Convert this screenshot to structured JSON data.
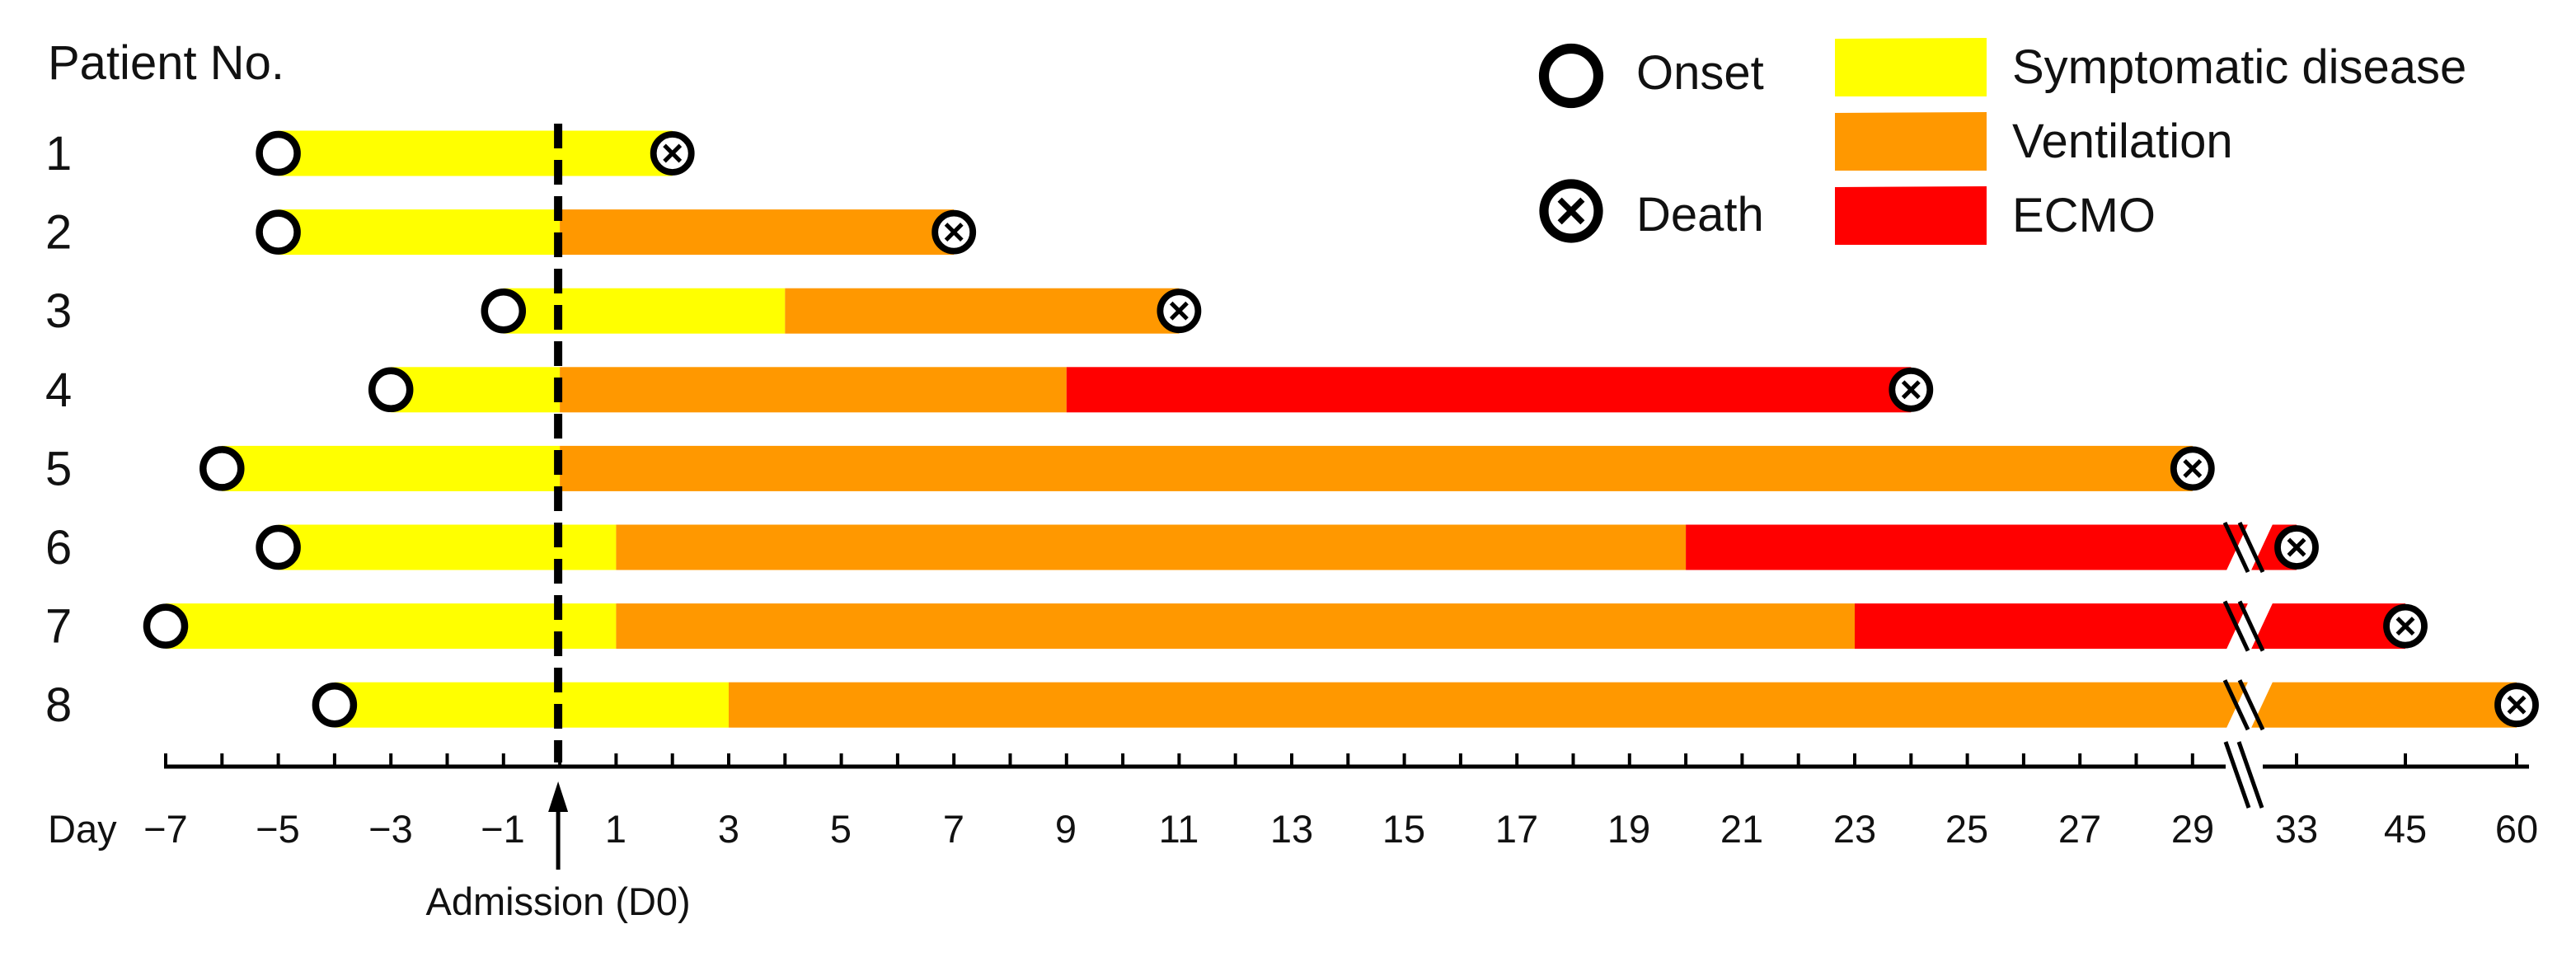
{
  "chart_data": {
    "type": "timeline",
    "title": "",
    "row_label": "Patient No.",
    "xlabel": "Day",
    "x_ticks": [
      "−7",
      "−5",
      "−3",
      "−1",
      "1",
      "3",
      "5",
      "7",
      "9",
      "11",
      "13",
      "15",
      "17",
      "19",
      "21",
      "23",
      "25",
      "27",
      "29",
      "33",
      "45",
      "60"
    ],
    "axis_break_after": "29",
    "admission_label": "Admission (D0)",
    "admission_day": 0,
    "legend": {
      "markers": [
        {
          "key": "onset",
          "label": "Onset"
        },
        {
          "key": "death",
          "label": "Death"
        }
      ],
      "phases": [
        {
          "key": "symptomatic",
          "label": "Symptomatic disease",
          "color": "#ffff00"
        },
        {
          "key": "ventilation",
          "label": "Ventilation",
          "color": "#ff9800"
        },
        {
          "key": "ecmo",
          "label": "ECMO",
          "color": "#ff0000"
        }
      ]
    },
    "patients": [
      {
        "id": "1",
        "onset": -5,
        "death": 2,
        "segments": [
          {
            "phase": "symptomatic",
            "start": -5,
            "end": 2
          }
        ]
      },
      {
        "id": "2",
        "onset": -5,
        "death": 7,
        "segments": [
          {
            "phase": "symptomatic",
            "start": -5,
            "end": 0
          },
          {
            "phase": "ventilation",
            "start": 0,
            "end": 7
          }
        ]
      },
      {
        "id": "3",
        "onset": -1,
        "death": 11,
        "segments": [
          {
            "phase": "symptomatic",
            "start": -1,
            "end": 4
          },
          {
            "phase": "ventilation",
            "start": 4,
            "end": 11
          }
        ]
      },
      {
        "id": "4",
        "onset": -3,
        "death": 24,
        "segments": [
          {
            "phase": "symptomatic",
            "start": -3,
            "end": 0
          },
          {
            "phase": "ventilation",
            "start": 0,
            "end": 9
          },
          {
            "phase": "ecmo",
            "start": 9,
            "end": 24
          }
        ]
      },
      {
        "id": "5",
        "onset": -6,
        "death": 29,
        "segments": [
          {
            "phase": "symptomatic",
            "start": -6,
            "end": 0
          },
          {
            "phase": "ventilation",
            "start": 0,
            "end": 29
          }
        ]
      },
      {
        "id": "6",
        "onset": -5,
        "death": 33,
        "segments": [
          {
            "phase": "symptomatic",
            "start": -5,
            "end": 1
          },
          {
            "phase": "ventilation",
            "start": 1,
            "end": 20
          },
          {
            "phase": "ecmo",
            "start": 20,
            "end": 33
          }
        ]
      },
      {
        "id": "7",
        "onset": -7,
        "death": 45,
        "segments": [
          {
            "phase": "symptomatic",
            "start": -7,
            "end": 1
          },
          {
            "phase": "ventilation",
            "start": 1,
            "end": 23
          },
          {
            "phase": "ecmo",
            "start": 23,
            "end": 45
          }
        ]
      },
      {
        "id": "8",
        "onset": -4,
        "death": 60,
        "segments": [
          {
            "phase": "symptomatic",
            "start": -4,
            "end": 3
          },
          {
            "phase": "ventilation",
            "start": 3,
            "end": 60
          }
        ]
      }
    ]
  }
}
